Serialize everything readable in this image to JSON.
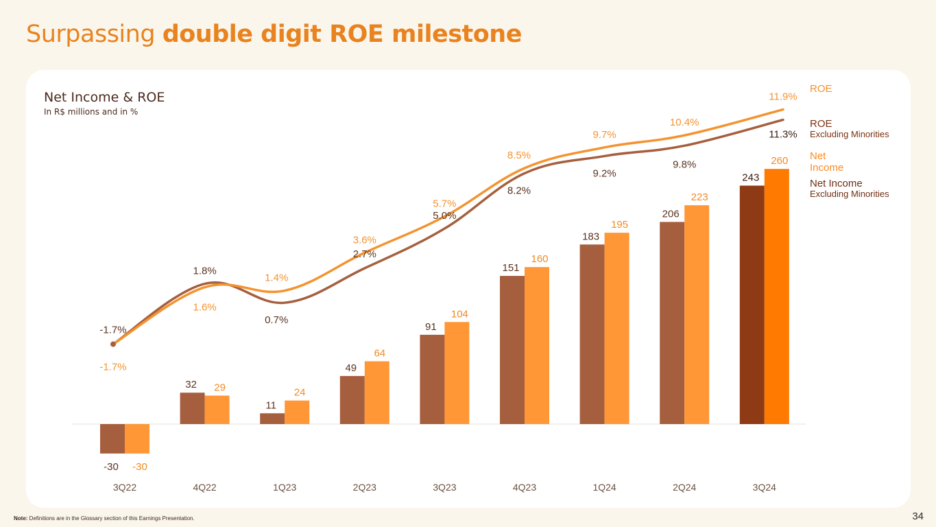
{
  "page": {
    "title_light": "Surpassing ",
    "title_bold": "double digit ROE milestone",
    "note_label": "Note:",
    "note_text": " Definitions are in the Glossary section of this Earnings Presentation.",
    "page_number": "34"
  },
  "colors": {
    "accent": "#e8831f",
    "ni_excl": "#a65f3e",
    "ni": "#ff9736",
    "ni_excl_last": "#8e3a14",
    "ni_last": "#ff7a00",
    "roe": "#f4932f",
    "roe_excl": "#a65f3e"
  },
  "legend": [
    {
      "main": "ROE",
      "sub": "",
      "color": "#f4932f"
    },
    {
      "main": "ROE",
      "sub": "Excluding Minorities",
      "color": "#8e3a14"
    },
    {
      "main": "Net Income",
      "sub": "",
      "color": "#ff8a1f"
    },
    {
      "main": "Net Income",
      "sub": "Excluding Minorities",
      "color": "#8e3a14"
    }
  ],
  "chart_data": {
    "type": "bar",
    "title": "Net Income & ROE",
    "subtitle": "In R$ millions and in %",
    "categories": [
      "3Q22",
      "4Q22",
      "1Q23",
      "2Q23",
      "3Q23",
      "4Q23",
      "1Q24",
      "2Q24",
      "3Q24"
    ],
    "series": [
      {
        "name": "Net Income Excluding Minorities",
        "kind": "bar",
        "values": [
          -30,
          32,
          11,
          49,
          91,
          151,
          183,
          206,
          243
        ],
        "labels": [
          "-30",
          "32",
          "11",
          "49",
          "91",
          "151",
          "183",
          "206",
          "243"
        ]
      },
      {
        "name": "Net Income",
        "kind": "bar",
        "values": [
          -30,
          29,
          24,
          64,
          104,
          160,
          195,
          223,
          260
        ],
        "labels": [
          "-30",
          "29",
          "24",
          "64",
          "104",
          "160",
          "195",
          "223",
          "260"
        ]
      },
      {
        "name": "ROE",
        "kind": "line",
        "unit": "%",
        "values": [
          -1.7,
          1.6,
          1.4,
          3.6,
          5.7,
          8.5,
          9.7,
          10.4,
          11.9
        ],
        "labels": [
          "-1.7%",
          "1.6%",
          "1.4%",
          "3.6%",
          "5.7%",
          "8.5%",
          "9.7%",
          "10.4%",
          "11.9%"
        ]
      },
      {
        "name": "ROE Excluding Minorities",
        "kind": "line",
        "unit": "%",
        "values": [
          -1.7,
          1.8,
          0.7,
          2.7,
          5.0,
          8.2,
          9.2,
          9.8,
          11.3
        ],
        "labels": [
          "-1.7%",
          "1.8%",
          "0.7%",
          "2.7%",
          "5.0%",
          "8.2%",
          "9.2%",
          "9.8%",
          "11.3%"
        ]
      }
    ],
    "bar_ylim": [
      -50,
      275
    ],
    "roe_ylim": [
      -3,
      13
    ],
    "legend_position": "right",
    "grid": false
  }
}
